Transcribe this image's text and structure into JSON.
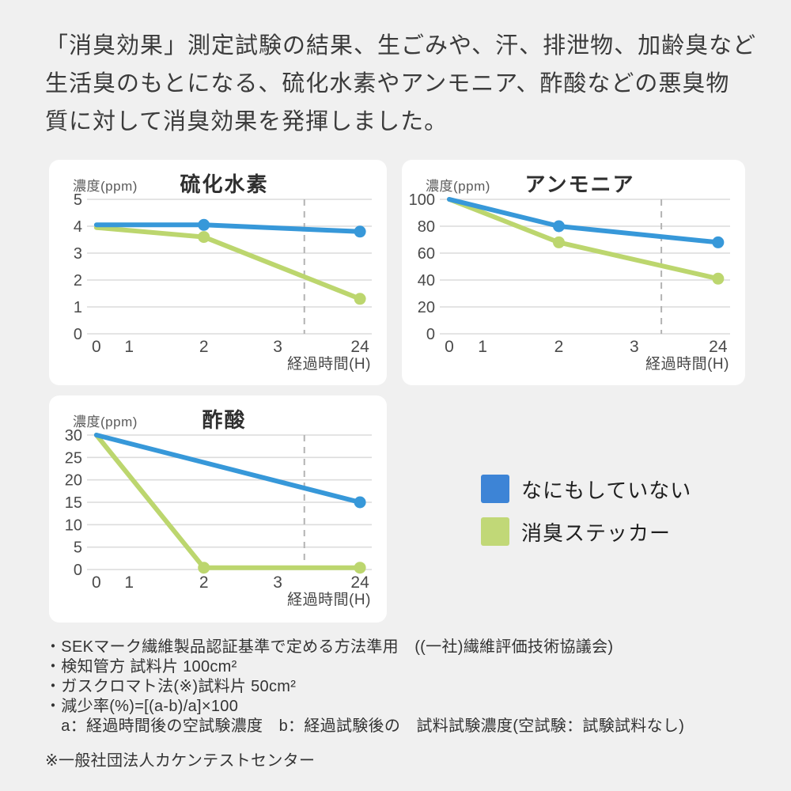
{
  "header": {
    "text": "「消臭効果」測定試験の結果、生ごみや、汗、排泄物、加齢臭など\n生活臭のもとになる、硫化水素やアンモニア、酢酸などの悪臭物\n質に対して消臭効果を発揮しました。"
  },
  "chart_data": [
    {
      "type": "line",
      "title": "硫化水素",
      "ylabel": "濃度(ppm)",
      "xlabel": "経過時間(H)",
      "x_ticks": [
        "0",
        "1",
        "2",
        "3",
        "24"
      ],
      "y_ticks": [
        "5",
        "4",
        "3",
        "2",
        "1",
        "0"
      ],
      "ylim": [
        0,
        5
      ],
      "grid": true,
      "axis_break_between": [
        "3",
        "24"
      ],
      "series": [
        {
          "name": "なにもしていない",
          "color": "#3798d9",
          "points": [
            {
              "x": "0",
              "v": 4.05,
              "marker": false
            },
            {
              "x": "2",
              "v": 4.05,
              "marker": true
            },
            {
              "x": "24",
              "v": 3.8,
              "marker": true
            }
          ]
        },
        {
          "name": "消臭ステッカー",
          "color": "#bcd66e",
          "points": [
            {
              "x": "0",
              "v": 3.95,
              "marker": false
            },
            {
              "x": "2",
              "v": 3.6,
              "marker": true
            },
            {
              "x": "24",
              "v": 1.3,
              "marker": true
            }
          ]
        }
      ]
    },
    {
      "type": "line",
      "title": "アンモニア",
      "ylabel": "濃度(ppm)",
      "xlabel": "経過時間(H)",
      "x_ticks": [
        "0",
        "1",
        "2",
        "3",
        "24"
      ],
      "y_ticks": [
        "100",
        "80",
        "60",
        "40",
        "20",
        "0"
      ],
      "ylim": [
        0,
        100
      ],
      "grid": true,
      "axis_break_between": [
        "3",
        "24"
      ],
      "series": [
        {
          "name": "なにもしていない",
          "color": "#3798d9",
          "points": [
            {
              "x": "0",
              "v": 100,
              "marker": false
            },
            {
              "x": "2",
              "v": 80,
              "marker": true
            },
            {
              "x": "24",
              "v": 68,
              "marker": true
            }
          ]
        },
        {
          "name": "消臭ステッカー",
          "color": "#bcd66e",
          "points": [
            {
              "x": "0",
              "v": 100,
              "marker": false
            },
            {
              "x": "2",
              "v": 68,
              "marker": true
            },
            {
              "x": "24",
              "v": 41,
              "marker": true
            }
          ]
        }
      ]
    },
    {
      "type": "line",
      "title": "酢酸",
      "ylabel": "濃度(ppm)",
      "xlabel": "経過時間(H)",
      "x_ticks": [
        "0",
        "1",
        "2",
        "3",
        "24"
      ],
      "y_ticks": [
        "30",
        "25",
        "20",
        "15",
        "10",
        "5",
        "0"
      ],
      "ylim": [
        0,
        30
      ],
      "grid": true,
      "axis_break_between": [
        "3",
        "24"
      ],
      "series": [
        {
          "name": "なにもしていない",
          "color": "#3798d9",
          "points": [
            {
              "x": "0",
              "v": 30,
              "marker": false
            },
            {
              "x": "24",
              "v": 15,
              "marker": true
            }
          ]
        },
        {
          "name": "消臭ステッカー",
          "color": "#bcd66e",
          "points": [
            {
              "x": "0",
              "v": 30,
              "marker": false
            },
            {
              "x": "2",
              "v": 0.4,
              "marker": true
            },
            {
              "x": "24",
              "v": 0.4,
              "marker": true
            }
          ]
        }
      ]
    }
  ],
  "legend": {
    "items": [
      {
        "label": "なにもしていない",
        "color": "#3d84d6"
      },
      {
        "label": "消臭ステッカー",
        "color": "#c1d877"
      }
    ]
  },
  "footnotes": {
    "lines": [
      "・SEKマーク繊維製品認証基準で定める方法準用　((一社)繊維評価技術協議会)",
      "・検知管方 試料片 100cm²",
      "・ガスクロマト法(※)試料片 50cm²",
      "・減少率(%)=[(a-b)/a]×100",
      "　a：経過時間後の空試験濃度　b：経過試験後の　試料試験濃度(空試験：試験試料なし)"
    ],
    "source": "※一般社団法人カケンテストセンター"
  },
  "style_tokens": {
    "background": "#f0f0f0",
    "card_background": "#ffffff",
    "gridline_color": "#dcdcdc",
    "axis_break_line_color": "#b3b3b3",
    "tick_label_color": "#4a4a4a"
  }
}
